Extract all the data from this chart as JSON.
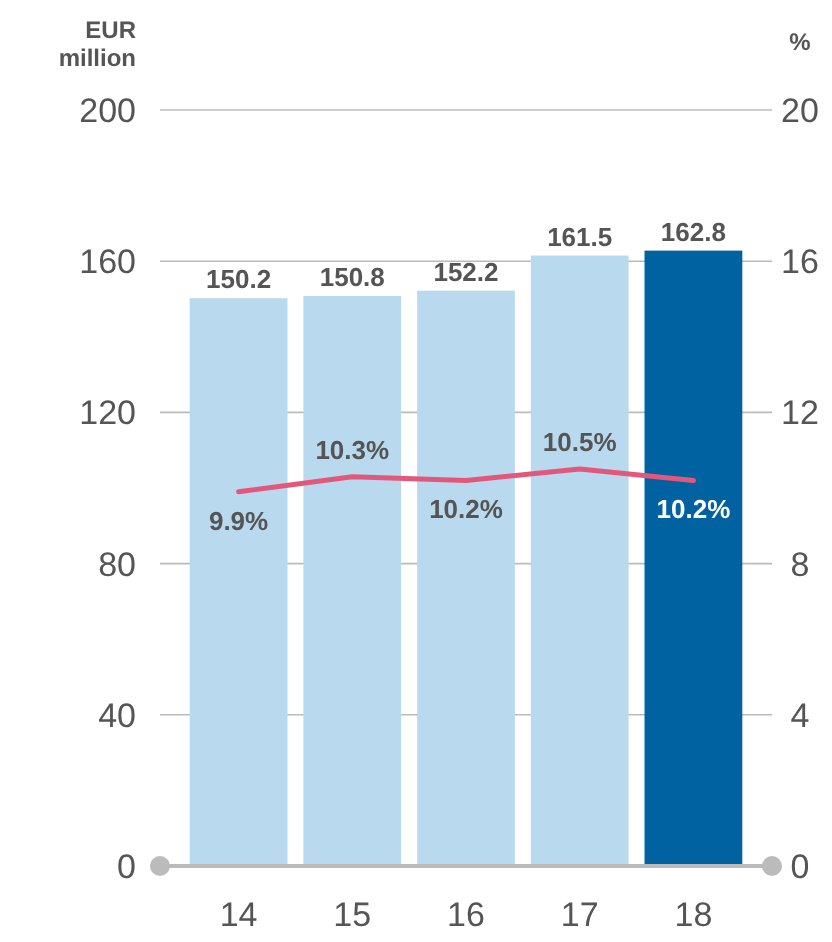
{
  "chart_data": {
    "type": "bar",
    "ylabel": "EUR million",
    "y2label": "%",
    "categories": [
      "14",
      "15",
      "16",
      "17",
      "18"
    ],
    "series": [
      {
        "colors": [
          "#b9d9ef",
          "#b9d9ef",
          "#b9d9ef",
          "#b9d9ef",
          "#0062a0"
        ],
        "values": [
          150.2,
          150.8,
          152.2,
          161.5,
          162.8
        ],
        "value_labels": [
          "150.2",
          "150.8",
          "152.2",
          "161.5",
          "162.8"
        ]
      },
      {
        "type": "line",
        "axis": "y2",
        "color": "#e3587a",
        "values": [
          9.9,
          10.3,
          10.2,
          10.5,
          10.2
        ],
        "value_labels": [
          "9.9%",
          "10.3%",
          "10.2%",
          "10.5%",
          "10.2%"
        ]
      }
    ],
    "ylim": [
      0,
      200
    ],
    "yticks": [
      0,
      40,
      80,
      120,
      160,
      200
    ],
    "y2lim": [
      0,
      20
    ],
    "y2ticks": [
      0,
      4,
      8,
      12,
      16,
      20
    ],
    "grid": "y",
    "marker": "none",
    "line_style": "solid"
  }
}
